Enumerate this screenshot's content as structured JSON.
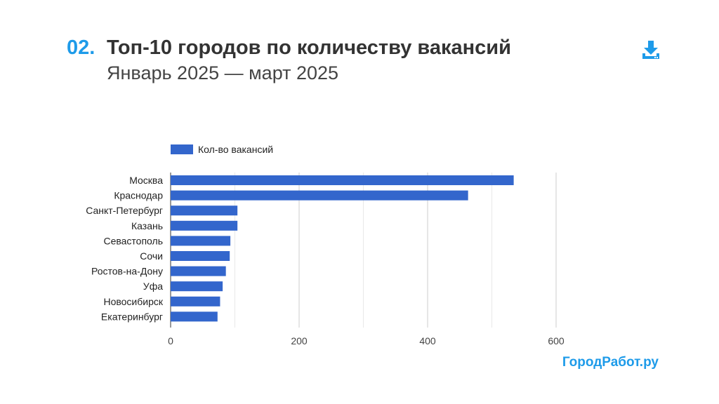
{
  "header": {
    "number": "02.",
    "title": "Топ-10 городов по количеству вакансий",
    "subtitle": "Январь 2025 — март 2025"
  },
  "brand": {
    "name": "ГородРабот.ру",
    "color": "#1e9be9"
  },
  "toolbar": {
    "download_icon": "download-icon"
  },
  "chart_data": {
    "type": "bar",
    "orientation": "horizontal",
    "categories": [
      "Москва",
      "Краснодар",
      "Санкт-Петербург",
      "Казань",
      "Севастополь",
      "Сочи",
      "Ростов-на-Дону",
      "Уфа",
      "Новосибирск",
      "Екатеринбург"
    ],
    "series": [
      {
        "name": "Кол-во вакансий",
        "color": "#3366cc",
        "values": [
          534,
          463,
          104,
          104,
          93,
          92,
          86,
          81,
          77,
          73
        ]
      }
    ],
    "xlim": [
      0,
      600
    ],
    "xticks": [
      0,
      200,
      400,
      600
    ],
    "grid": true,
    "legend": "top-left"
  }
}
